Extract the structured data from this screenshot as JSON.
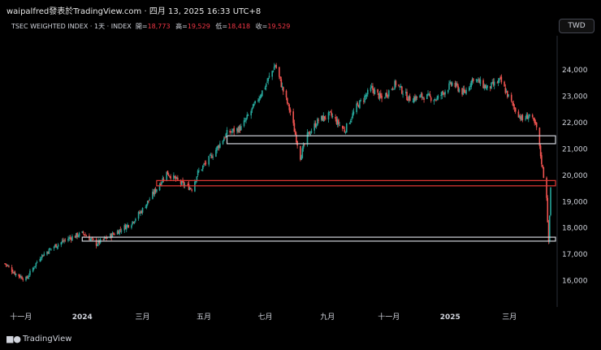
{
  "caption": "waipalfred發表於TradingView.com · 四月 13, 2025 16:33 UTC+8",
  "header": {
    "symbol": "TSEC WEIGHTED INDEX · 1天 · INDEX",
    "open_label": "開=",
    "open": "18,773",
    "high_label": "高=",
    "high": "19,529",
    "low_label": "低=",
    "low": "18,418",
    "close_label": "收=",
    "close": "19,529"
  },
  "currency_button": "TWD",
  "brand": {
    "logo_icon": "tradingview-logo-icon",
    "name": "TradingView"
  },
  "colors": {
    "up": "#26a69a",
    "down": "#ef5350",
    "box_white": "#d1d4dc",
    "box_red": "#e53935"
  },
  "chart_data": {
    "type": "candlestick",
    "title": "TSEC WEIGHTED INDEX",
    "ylim": [
      15000,
      25300
    ],
    "y_ticks": [
      "24,000",
      "23,000",
      "22,000",
      "21,000",
      "20,000",
      "19,000",
      "18,000",
      "17,000",
      "16,000"
    ],
    "y_tick_values": [
      24000,
      23000,
      22000,
      21000,
      20000,
      19000,
      18000,
      17000,
      16000
    ],
    "x_ticks": [
      "十一月",
      "2024",
      "三月",
      "五月",
      "七月",
      "九月",
      "十一月",
      "2025",
      "三月"
    ],
    "x_tick_dates": [
      "2023-11",
      "2024-01",
      "2024-03",
      "2024-05",
      "2024-07",
      "2024-09",
      "2024-11",
      "2025-01",
      "2025-03"
    ],
    "x_range": [
      "2023-10-16",
      "2025-04-11"
    ],
    "path_dates": [
      "2023-10-16",
      "2023-10-27",
      "2023-11-06",
      "2023-11-20",
      "2023-12-04",
      "2023-12-18",
      "2024-01-02",
      "2024-01-15",
      "2024-01-29",
      "2024-02-19",
      "2024-03-01",
      "2024-03-15",
      "2024-03-25",
      "2024-04-08",
      "2024-04-19",
      "2024-04-25",
      "2024-05-10",
      "2024-05-24",
      "2024-06-07",
      "2024-06-21",
      "2024-07-01",
      "2024-07-11",
      "2024-07-19",
      "2024-07-26",
      "2024-08-05",
      "2024-08-12",
      "2024-08-23",
      "2024-09-04",
      "2024-09-18",
      "2024-09-30",
      "2024-10-15",
      "2024-10-25",
      "2024-11-08",
      "2024-11-21",
      "2024-12-06",
      "2024-12-19",
      "2025-01-03",
      "2025-01-15",
      "2025-01-24",
      "2025-02-07",
      "2025-02-20",
      "2025-03-05",
      "2025-03-14",
      "2025-03-21",
      "2025-03-28",
      "2025-04-07",
      "2025-04-09",
      "2025-04-11"
    ],
    "path_closes": [
      16650,
      16250,
      16050,
      16900,
      17300,
      17600,
      17800,
      17400,
      17700,
      18200,
      18700,
      19500,
      20100,
      19700,
      19500,
      20100,
      20800,
      21600,
      21800,
      22700,
      23400,
      24200,
      23200,
      22400,
      20700,
      21500,
      22100,
      22300,
      21700,
      22600,
      23300,
      22900,
      23500,
      22900,
      23000,
      22900,
      23500,
      23100,
      23700,
      23300,
      23600,
      22600,
      22100,
      22300,
      21800,
      19200,
      17400,
      19529
    ],
    "box_zones": [
      {
        "y_top": 21500,
        "y_bottom": 21200,
        "start": "2024-05-24",
        "style": "white"
      },
      {
        "y_top": 19800,
        "y_bottom": 19600,
        "start": "2024-03-15",
        "style": "red"
      },
      {
        "y_top": 17650,
        "y_bottom": 17500,
        "start": "2024-01-01",
        "style": "white"
      }
    ]
  }
}
